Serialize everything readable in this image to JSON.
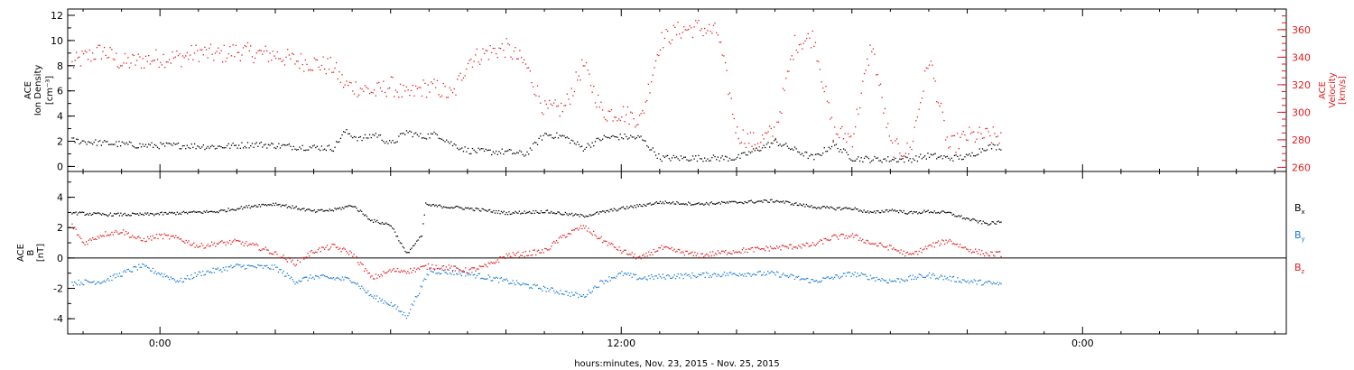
{
  "chart_data": [
    {
      "type": "scatter",
      "panel": "top",
      "ylabel_left": [
        "ACE",
        "Ion Density",
        "[cm⁻³]"
      ],
      "ylabel_right": [
        "ACE",
        "Velocity",
        "[km/s]"
      ],
      "xlabel": "hours:minutes, Nov. 23, 2015 - Nov. 25, 2015",
      "x_unit": "hours since 0:00",
      "xlim": [
        -2.4,
        29.3
      ],
      "x_ticks": [
        0,
        12,
        24
      ],
      "x_tick_labels": [
        "0:00",
        "12:00",
        "0:00"
      ],
      "ylim_left": [
        -0.4,
        12.5
      ],
      "y_ticks_left": [
        0,
        2,
        4,
        6,
        8,
        10,
        12
      ],
      "ylim_right": [
        257,
        375
      ],
      "y_ticks_right": [
        260,
        280,
        300,
        320,
        340,
        360
      ],
      "colors": {
        "density": "#000000",
        "velocity": "#e31a1c"
      },
      "series": [
        {
          "color": "#000000",
          "axis": "left",
          "x": [
            -2.3,
            -1.5,
            -0.5,
            0.5,
            1.5,
            2.5,
            3.5,
            4.5,
            4.8,
            5.2,
            5.6,
            6,
            6.4,
            6.8,
            7.2,
            7.6,
            8,
            8.5,
            9,
            9.5,
            10,
            10.5,
            11,
            11.5,
            12,
            12.5,
            13,
            13.5,
            14,
            15,
            16,
            17,
            17.5,
            18,
            18.5,
            19,
            19.5,
            20,
            20.5,
            21,
            21.5,
            21.9
          ],
          "y": [
            2.1,
            1.9,
            1.7,
            1.7,
            1.6,
            1.8,
            1.6,
            1.5,
            2.8,
            2.2,
            2.6,
            1.8,
            2.8,
            2.4,
            2.6,
            1.8,
            1.3,
            1.2,
            1.2,
            1.0,
            2.6,
            2.4,
            1.5,
            2.3,
            2.4,
            2.3,
            0.7,
            0.7,
            0.7,
            0.7,
            2.0,
            0.7,
            1.8,
            0.7,
            0.6,
            0.6,
            0.6,
            0.9,
            0.7,
            0.8,
            1.6,
            1.6
          ]
        },
        {
          "color": "#e31a1c",
          "axis": "right",
          "x": [
            -2.3,
            -2,
            -1.5,
            -1,
            -0.5,
            0,
            0.5,
            1,
            1.5,
            2,
            2.5,
            3,
            3.5,
            4,
            4.5,
            4.8,
            5.2,
            5.6,
            6,
            6.4,
            6.8,
            7.2,
            7.6,
            8,
            8.5,
            9,
            9.5,
            10,
            10.5,
            11,
            11.5,
            12,
            12.5,
            13,
            13.5,
            14,
            14.5,
            15,
            15.5,
            16,
            16.5,
            17,
            17.5,
            18,
            18.5,
            19,
            19.5,
            20,
            20.5,
            21,
            21.5,
            21.9
          ],
          "y": [
            335,
            340,
            345,
            336,
            338,
            340,
            340,
            344,
            342,
            345,
            343,
            342,
            338,
            336,
            333,
            320,
            318,
            315,
            320,
            312,
            318,
            318,
            312,
            338,
            344,
            347,
            335,
            302,
            303,
            335,
            300,
            300,
            295,
            352,
            360,
            362,
            358,
            285,
            278,
            287,
            350,
            355,
            286,
            282,
            350,
            275,
            272,
            340,
            275,
            283,
            283,
            283
          ]
        }
      ]
    },
    {
      "type": "scatter",
      "panel": "bottom",
      "ylabel_left": [
        "ACE",
        "B",
        "[nT]"
      ],
      "xlim": [
        -2.4,
        29.3
      ],
      "ylim": [
        -5,
        5.7
      ],
      "y_ticks": [
        -4,
        -2,
        0,
        2,
        4
      ],
      "zero_line": true,
      "colors": {
        "Bx": "#000000",
        "By": "#1a7ad4",
        "Bz": "#e31a1c"
      },
      "series": [
        {
          "name": "Bx",
          "color": "#000000",
          "x": [
            -2.3,
            -1.5,
            -0.5,
            0.5,
            1.5,
            2.5,
            3,
            4,
            4.5,
            5,
            5.5,
            6,
            6.4,
            6.8,
            6.9,
            7,
            8,
            9,
            10,
            11,
            12,
            13,
            14,
            15,
            16,
            17,
            17.5,
            18,
            18.5,
            19,
            19.5,
            20,
            20.5,
            21,
            21.5,
            21.9
          ],
          "y": [
            3,
            2.9,
            2.9,
            3.0,
            3.1,
            3.5,
            3.6,
            3.1,
            3.2,
            3.5,
            2.5,
            2.2,
            0.3,
            1.5,
            3.6,
            3.5,
            3.3,
            3.0,
            3.1,
            2.8,
            3.3,
            3.7,
            3.6,
            3.7,
            3.8,
            3.4,
            3.3,
            3.3,
            3.0,
            3.2,
            3.0,
            3.1,
            3.0,
            2.6,
            2.3,
            2.4
          ]
        },
        {
          "name": "By",
          "color": "#1a7ad4",
          "x": [
            -2.3,
            -1.5,
            -0.5,
            0.5,
            1,
            2,
            3,
            3.5,
            4,
            5,
            5.5,
            6,
            6.4,
            7,
            8,
            9,
            10,
            11,
            11.5,
            12,
            12.5,
            13,
            14,
            15,
            16,
            17,
            18,
            19,
            20,
            21,
            21.9
          ],
          "y": [
            -1.6,
            -1.5,
            -0.5,
            -1.5,
            -1.0,
            -0.5,
            -0.6,
            -1.5,
            -1.2,
            -1.4,
            -2.5,
            -3.0,
            -3.8,
            -0.8,
            -1.0,
            -1.5,
            -2.0,
            -2.5,
            -1.5,
            -1.0,
            -1.3,
            -1.2,
            -1.1,
            -1.0,
            -1.0,
            -1.5,
            -1.0,
            -1.5,
            -1.1,
            -1.5,
            -1.7
          ]
        },
        {
          "name": "Bz",
          "color": "#e31a1c",
          "x": [
            -2.3,
            -2,
            -1.5,
            -1,
            -0.5,
            0,
            0.5,
            1,
            1.5,
            2,
            2.5,
            3,
            3.5,
            4,
            4.5,
            5,
            5.5,
            6,
            6.5,
            7,
            7.5,
            8,
            8.5,
            9,
            9.5,
            10,
            10.5,
            11,
            11.5,
            12,
            12.5,
            13,
            14,
            15,
            16,
            17,
            17.5,
            18,
            18.5,
            19,
            19.5,
            20,
            20.5,
            21,
            21.5,
            21.9
          ],
          "y": [
            2.2,
            1.0,
            1.6,
            1.8,
            1.2,
            1.5,
            1.3,
            0.8,
            1.0,
            1.1,
            0.8,
            0.3,
            -0.3,
            0.5,
            0.8,
            0.3,
            -1.3,
            -0.8,
            -0.8,
            -0.5,
            -0.6,
            -0.8,
            -0.5,
            0.2,
            0.3,
            0.5,
            1.5,
            2.1,
            1.2,
            0.5,
            0.0,
            0.7,
            0.2,
            0.5,
            0.7,
            0.9,
            1.4,
            1.5,
            1.0,
            0.7,
            0.2,
            0.8,
            1.2,
            0.6,
            0.3,
            0.3
          ]
        }
      ],
      "legend_placement": "right",
      "legend": [
        {
          "base": "B",
          "sub": "x",
          "color": "#000000"
        },
        {
          "base": "B",
          "sub": "y",
          "color": "#1a7ad4"
        },
        {
          "base": "B",
          "sub": "z",
          "color": "#e31a1c"
        }
      ]
    }
  ]
}
